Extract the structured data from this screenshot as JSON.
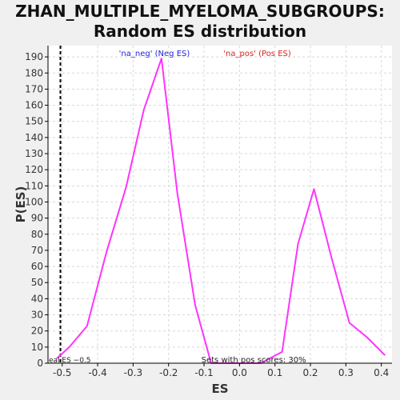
{
  "title_line1": "ZHAN_MULTIPLE_MYELOMA_SUBGROUPS:",
  "title_line2": "Random ES distribution",
  "chart_data": {
    "type": "line",
    "xlabel": "ES",
    "ylabel": "P(ES)",
    "xlim": [
      -0.54,
      0.43
    ],
    "ylim": [
      0,
      197
    ],
    "xticks": [
      -0.5,
      -0.4,
      -0.3,
      -0.2,
      -0.1,
      0.0,
      0.1,
      0.2,
      0.3,
      0.4
    ],
    "xtick_labels": [
      "-0.5",
      "-0.4",
      "-0.3",
      "-0.2",
      "-0.1",
      "0.0",
      "0.1",
      "0.2",
      "0.3",
      "0.4"
    ],
    "yticks": [
      0,
      10,
      20,
      30,
      40,
      50,
      60,
      70,
      80,
      90,
      100,
      110,
      120,
      130,
      140,
      150,
      160,
      170,
      180,
      190
    ],
    "grid": true,
    "series": [
      {
        "x": [
          -0.515,
          -0.48,
          -0.43,
          -0.375,
          -0.32,
          -0.27,
          -0.22,
          -0.175,
          -0.125,
          -0.08,
          -0.03,
          0.02,
          0.06,
          0.12,
          0.165,
          0.21,
          0.26,
          0.31,
          0.36,
          0.41
        ],
        "y": [
          3,
          10,
          23,
          69,
          109,
          157,
          189,
          105,
          36,
          0,
          0,
          0,
          0,
          7,
          74,
          108,
          65,
          25,
          16,
          5
        ],
        "color": "#ff33ff"
      }
    ],
    "vline": {
      "x": -0.505
    },
    "annotations": {
      "neg": "'na_neg' (Neg ES)",
      "pos": "'na_pos' (Pos ES)",
      "real_es": "eal ES −0.5",
      "pos_scores": "Sets with pos scores: 30%"
    },
    "colors": {
      "neg": "#2222dd",
      "pos": "#dd2222",
      "grid": "#d8d8d8",
      "axis": "#000000"
    }
  }
}
